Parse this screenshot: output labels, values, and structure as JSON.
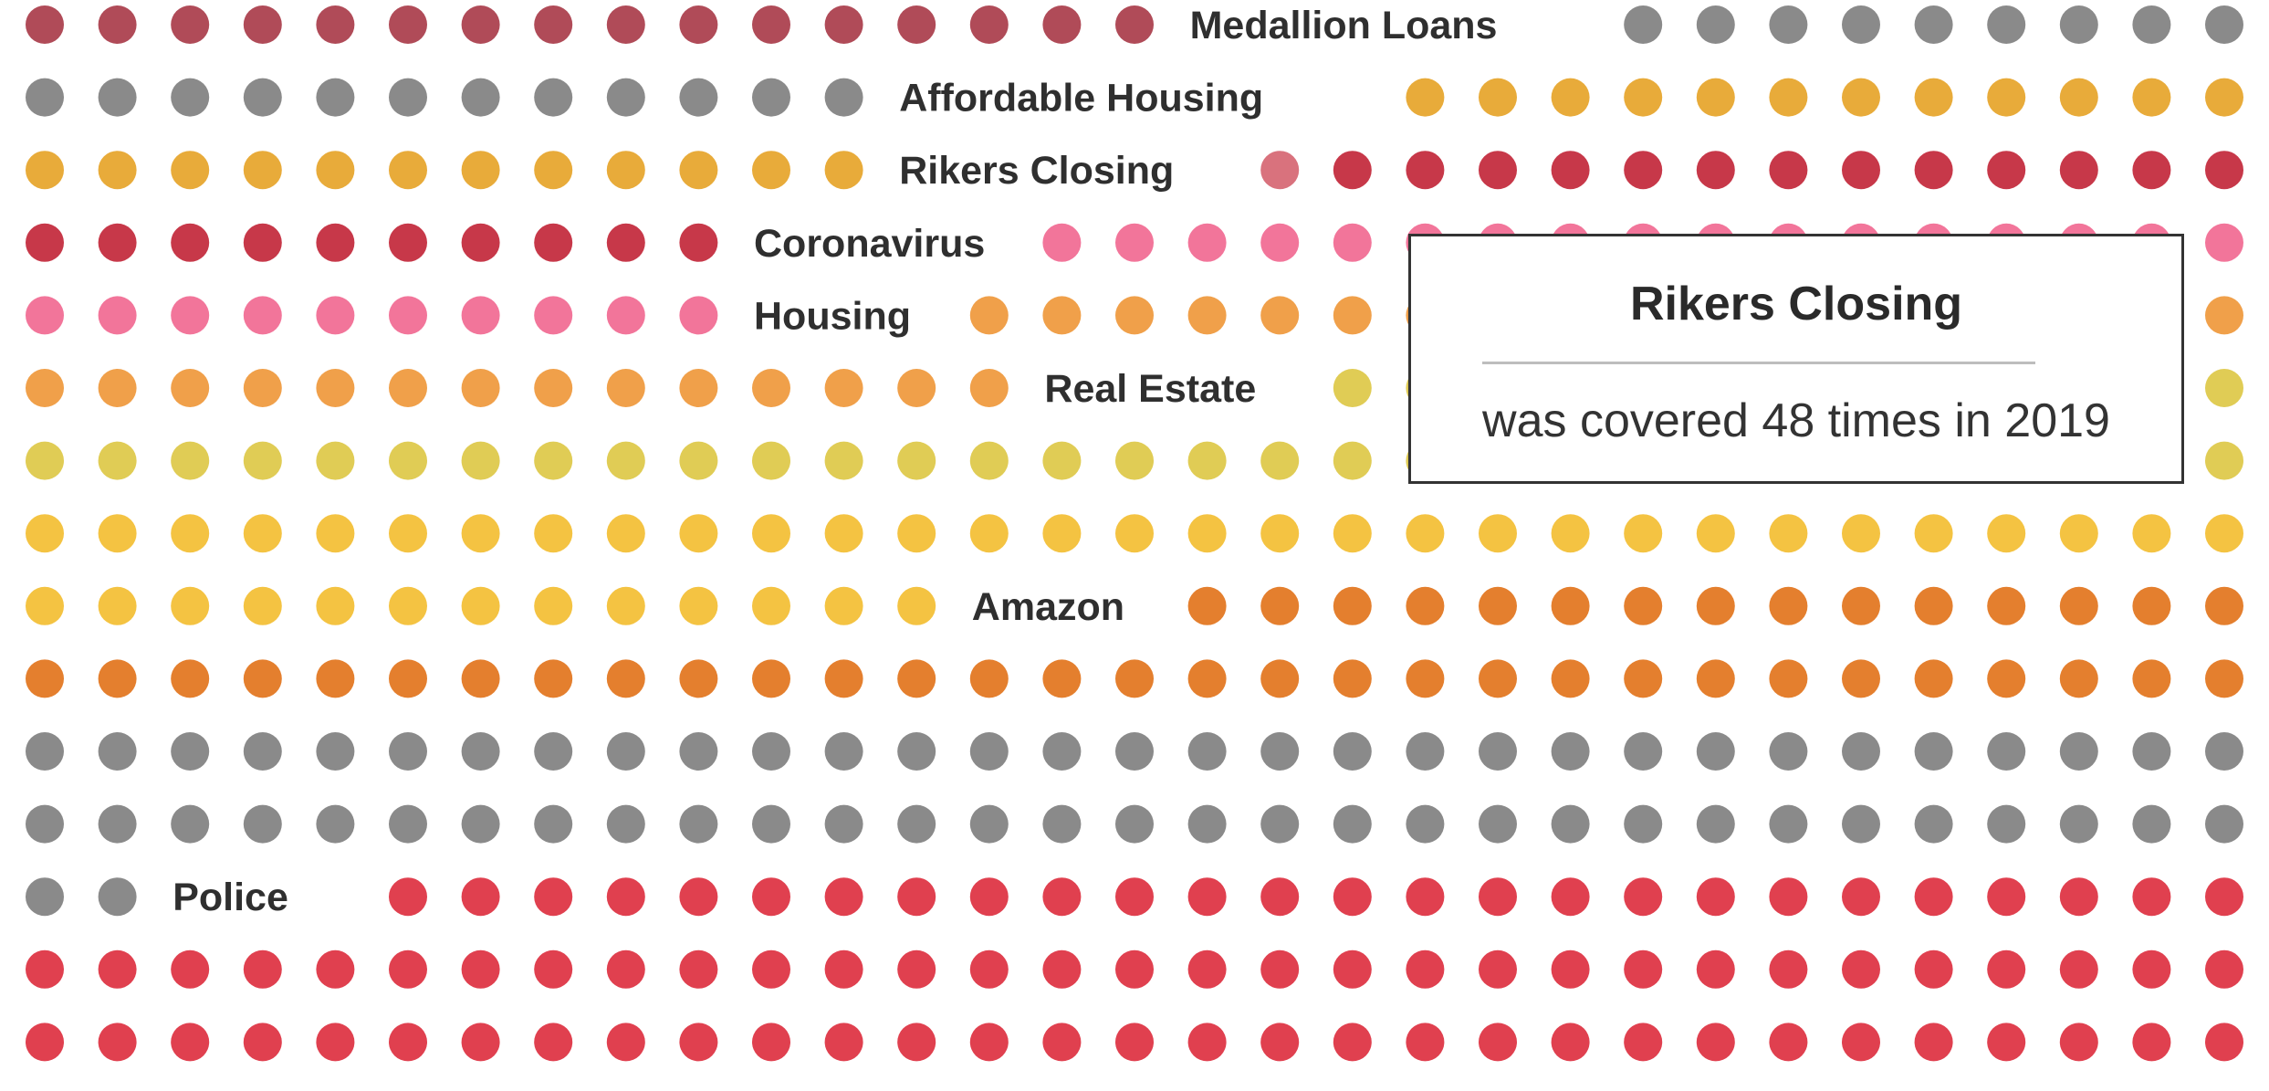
{
  "chart_data": {
    "type": "dot-matrix",
    "colors": {
      "grey": "#8a8a8a",
      "medallion": "#b04b58",
      "affordable": "#e8ab3a",
      "rikers": "#c73849",
      "rikers_hover": "#d9727d",
      "coronavirus": "#f2759a",
      "housing": "#f0a04a",
      "real_estate": "#e0cc55",
      "yellow": "#f4c342",
      "amazon": "#e47f2e",
      "police": "#e0404f"
    },
    "rows": [
      {
        "segments": [
          {
            "color": "medallion",
            "count": 16
          },
          {
            "label": "Medallion Loans",
            "slots": 6
          },
          {
            "color": "grey",
            "count": 9
          }
        ]
      },
      {
        "segments": [
          {
            "color": "grey",
            "count": 12
          },
          {
            "label": "Affordable Housing",
            "slots": 7
          },
          {
            "color": "affordable",
            "count": 12
          }
        ]
      },
      {
        "segments": [
          {
            "color": "affordable",
            "count": 12
          },
          {
            "label": "Rikers Closing",
            "slots": 5
          },
          {
            "color": "rikers_hover",
            "count": 1
          },
          {
            "color": "rikers",
            "count": 13
          }
        ]
      },
      {
        "segments": [
          {
            "color": "rikers",
            "count": 10
          },
          {
            "label": "Coronavirus",
            "slots": 4
          },
          {
            "color": "coronavirus",
            "count": 17
          }
        ]
      },
      {
        "segments": [
          {
            "color": "coronavirus",
            "count": 10
          },
          {
            "label": "Housing",
            "slots": 3
          },
          {
            "color": "housing",
            "count": 18
          }
        ]
      },
      {
        "segments": [
          {
            "color": "housing",
            "count": 14
          },
          {
            "label": "Real Estate",
            "slots": 4
          },
          {
            "color": "real_estate",
            "count": 13
          }
        ]
      },
      {
        "segments": [
          {
            "color": "real_estate",
            "count": 31
          }
        ]
      },
      {
        "segments": [
          {
            "color": "yellow",
            "count": 31
          }
        ]
      },
      {
        "segments": [
          {
            "color": "yellow",
            "count": 13
          },
          {
            "label": "Amazon",
            "slots": 3
          },
          {
            "color": "amazon",
            "count": 15
          }
        ]
      },
      {
        "segments": [
          {
            "color": "amazon",
            "count": 31
          }
        ]
      },
      {
        "segments": [
          {
            "color": "grey",
            "count": 31
          }
        ]
      },
      {
        "segments": [
          {
            "color": "grey",
            "count": 31
          }
        ]
      },
      {
        "segments": [
          {
            "color": "grey",
            "count": 2
          },
          {
            "label": "Police",
            "slots": 3
          },
          {
            "color": "police",
            "count": 26
          }
        ]
      },
      {
        "segments": [
          {
            "color": "police",
            "count": 31
          }
        ]
      },
      {
        "segments": [
          {
            "color": "police",
            "count": 31
          }
        ]
      }
    ]
  },
  "tooltip": {
    "title": "Rikers Closing",
    "text": "was covered 48 times in 2019"
  }
}
